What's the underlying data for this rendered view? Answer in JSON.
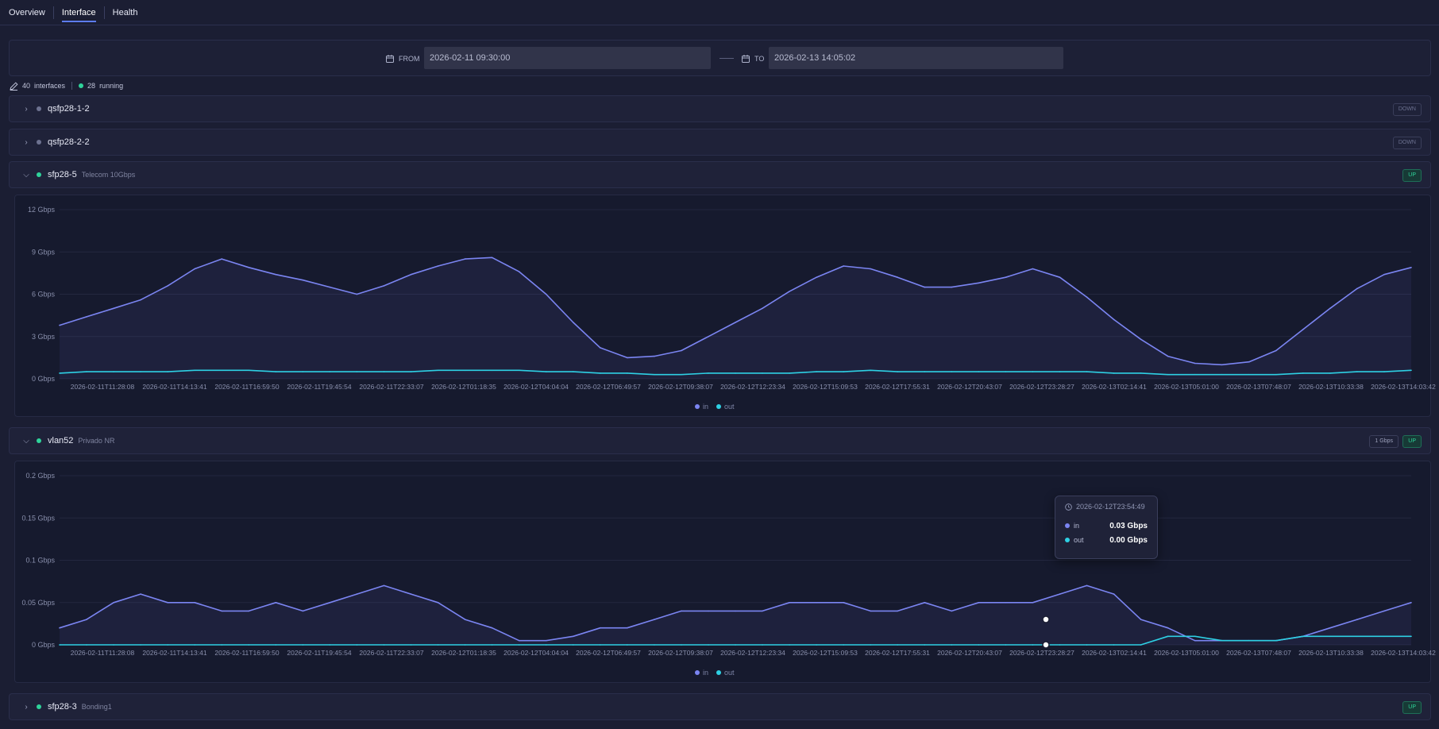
{
  "tabs": [
    {
      "label": "Overview",
      "active": false
    },
    {
      "label": "Interface",
      "active": true
    },
    {
      "label": "Health",
      "active": false
    }
  ],
  "daterange": {
    "from_label": "FROM",
    "from_value": "2026-02-11 09:30:00",
    "to_label": "TO",
    "to_value": "2026-02-13 14:05:02"
  },
  "summary": {
    "interfaces_count": "40",
    "interfaces_label": "interfaces",
    "running_count": "28",
    "running_label": "running"
  },
  "interfaces": [
    {
      "name": "qsfp28-1-2",
      "description": "",
      "status": "DOWN",
      "speed": "",
      "expanded": false
    },
    {
      "name": "qsfp28-2-2",
      "description": "",
      "status": "DOWN",
      "speed": "",
      "expanded": false
    },
    {
      "name": "sfp28-5",
      "description": "Telecom 10Gbps",
      "status": "UP",
      "speed": "",
      "expanded": true
    },
    {
      "name": "vlan52",
      "description": "Privado NR",
      "status": "UP",
      "speed": "1 Gbps",
      "expanded": true
    },
    {
      "name": "sfp28-3",
      "description": "Bonding1",
      "status": "UP",
      "speed": "",
      "expanded": false
    }
  ],
  "legend": {
    "in": "in",
    "out": "out"
  },
  "colors": {
    "in": "#7b85f2",
    "out": "#2ed0e4",
    "up": "#2fd39a"
  },
  "tooltip": {
    "time": "2026-02-12T23:54:49",
    "in_label": "in",
    "in_value": "0.03 Gbps",
    "out_label": "out",
    "out_value": "0.00 Gbps"
  },
  "chart_data": [
    {
      "type": "line",
      "interface": "sfp28-5",
      "ylim": [
        0,
        12
      ],
      "y_ticks": [
        "0 Gbps",
        "3 Gbps",
        "6 Gbps",
        "9 Gbps",
        "12 Gbps"
      ],
      "x_ticks": [
        "2026-02-11T11:28:08",
        "2026-02-11T14:13:41",
        "2026-02-11T16:59:50",
        "2026-02-11T19:45:54",
        "2026-02-11T22:33:07",
        "2026-02-12T01:18:35",
        "2026-02-12T04:04:04",
        "2026-02-12T06:49:57",
        "2026-02-12T09:38:07",
        "2026-02-12T12:23:34",
        "2026-02-12T15:09:53",
        "2026-02-12T17:55:31",
        "2026-02-12T20:43:07",
        "2026-02-12T23:28:27",
        "2026-02-13T02:14:41",
        "2026-02-13T05:01:00",
        "2026-02-13T07:48:07",
        "2026-02-13T10:33:38",
        "2026-02-13T14:03:42"
      ],
      "series": [
        {
          "name": "in",
          "values": [
            3.8,
            4.4,
            5.0,
            5.6,
            6.6,
            7.8,
            8.5,
            7.9,
            7.4,
            7.0,
            6.5,
            6.0,
            6.6,
            7.4,
            8.0,
            8.5,
            8.6,
            7.6,
            6.0,
            4.0,
            2.2,
            1.5,
            1.6,
            2.0,
            3.0,
            4.0,
            5.0,
            6.2,
            7.2,
            8.0,
            7.8,
            7.2,
            6.5,
            6.5,
            6.8,
            7.2,
            7.8,
            7.2,
            5.8,
            4.2,
            2.8,
            1.6,
            1.1,
            1.0,
            1.2,
            2.0,
            3.5,
            5.0,
            6.4,
            7.4,
            7.9
          ]
        },
        {
          "name": "out",
          "values": [
            0.4,
            0.5,
            0.5,
            0.5,
            0.5,
            0.6,
            0.6,
            0.6,
            0.5,
            0.5,
            0.5,
            0.5,
            0.5,
            0.5,
            0.6,
            0.6,
            0.6,
            0.6,
            0.5,
            0.5,
            0.4,
            0.4,
            0.3,
            0.3,
            0.4,
            0.4,
            0.4,
            0.4,
            0.5,
            0.5,
            0.6,
            0.5,
            0.5,
            0.5,
            0.5,
            0.5,
            0.5,
            0.5,
            0.5,
            0.4,
            0.4,
            0.3,
            0.3,
            0.3,
            0.3,
            0.3,
            0.4,
            0.4,
            0.5,
            0.5,
            0.6
          ]
        }
      ]
    },
    {
      "type": "line",
      "interface": "vlan52",
      "ylim": [
        0,
        0.2
      ],
      "y_ticks": [
        "0 Gbps",
        "0.05 Gbps",
        "0.1 Gbps",
        "0.15 Gbps",
        "0.2 Gbps"
      ],
      "x_ticks": [
        "2026-02-11T11:28:08",
        "2026-02-11T14:13:41",
        "2026-02-11T16:59:50",
        "2026-02-11T19:45:54",
        "2026-02-11T22:33:07",
        "2026-02-12T01:18:35",
        "2026-02-12T04:04:04",
        "2026-02-12T06:49:57",
        "2026-02-12T09:38:07",
        "2026-02-12T12:23:34",
        "2026-02-12T15:09:53",
        "2026-02-12T17:55:31",
        "2026-02-12T20:43:07",
        "2026-02-12T23:28:27",
        "2026-02-13T02:14:41",
        "2026-02-13T05:01:00",
        "2026-02-13T07:48:07",
        "2026-02-13T10:33:38",
        "2026-02-13T14:03:42"
      ],
      "series": [
        {
          "name": "in",
          "values": [
            0.02,
            0.03,
            0.05,
            0.06,
            0.05,
            0.05,
            0.04,
            0.04,
            0.05,
            0.04,
            0.05,
            0.06,
            0.07,
            0.06,
            0.05,
            0.03,
            0.02,
            0.005,
            0.005,
            0.01,
            0.02,
            0.02,
            0.03,
            0.04,
            0.04,
            0.04,
            0.04,
            0.05,
            0.05,
            0.05,
            0.04,
            0.04,
            0.05,
            0.04,
            0.05,
            0.05,
            0.05,
            0.06,
            0.07,
            0.06,
            0.03,
            0.02,
            0.005,
            0.005,
            0.005,
            0.005,
            0.01,
            0.02,
            0.03,
            0.04,
            0.05
          ]
        },
        {
          "name": "out",
          "values": [
            0.0,
            0.0,
            0.0,
            0.0,
            0.0,
            0.0,
            0.0,
            0.0,
            0.0,
            0.0,
            0.0,
            0.0,
            0.0,
            0.0,
            0.0,
            0.0,
            0.0,
            0.0,
            0.0,
            0.0,
            0.0,
            0.0,
            0.0,
            0.0,
            0.0,
            0.0,
            0.0,
            0.0,
            0.0,
            0.0,
            0.0,
            0.0,
            0.0,
            0.0,
            0.0,
            0.0,
            0.0,
            0.0,
            0.0,
            0.0,
            0.0,
            0.01,
            0.01,
            0.005,
            0.005,
            0.005,
            0.01,
            0.01,
            0.01,
            0.01,
            0.01
          ]
        }
      ]
    }
  ]
}
